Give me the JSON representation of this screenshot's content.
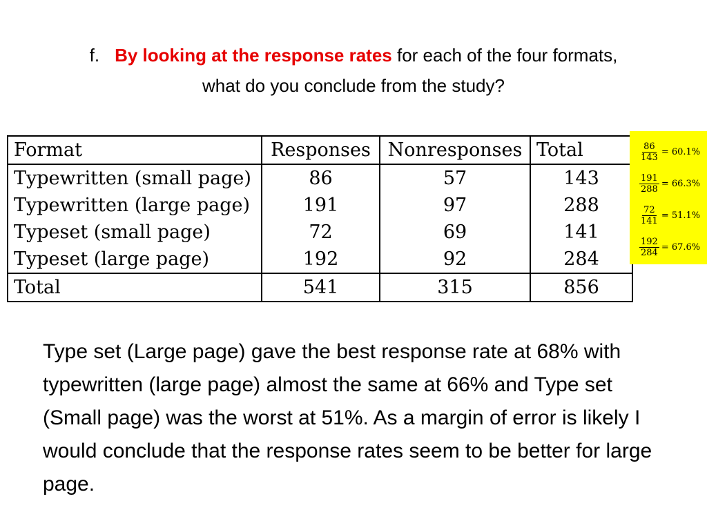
{
  "title": {
    "prefix": "f.",
    "highlight": "By looking at the response rates",
    "rest_line1": " for each of the four formats,",
    "line2": "what do you conclude from the study?"
  },
  "table": {
    "headers": [
      "Format",
      "Responses",
      "Nonresponses",
      "Total"
    ],
    "rows": [
      [
        "Typewritten (small page)",
        "86",
        "57",
        "143"
      ],
      [
        "Typewritten (large page)",
        "191",
        "97",
        "288"
      ],
      [
        "Typeset (small page)",
        "72",
        "69",
        "141"
      ],
      [
        "Typeset (large page)",
        "192",
        "92",
        "284"
      ]
    ],
    "total": [
      "Total",
      "541",
      "315",
      "856"
    ]
  },
  "calculations": [
    {
      "num": "86",
      "den": "143",
      "result": "= 60.1%"
    },
    {
      "num": "191",
      "den": "288",
      "result": "= 66.3%"
    },
    {
      "num": "72",
      "den": "141",
      "result": "= 51.1%"
    },
    {
      "num": "192",
      "den": "284",
      "result": "= 67.6%"
    }
  ],
  "conclusion": "Type set (Large page) gave the best response rate at 68% with typewritten (large page) almost the same at 66% and Type set (Small page) was the worst at 51%. As a margin of error is likely I would conclude that the response rates seem to be better for large page."
}
